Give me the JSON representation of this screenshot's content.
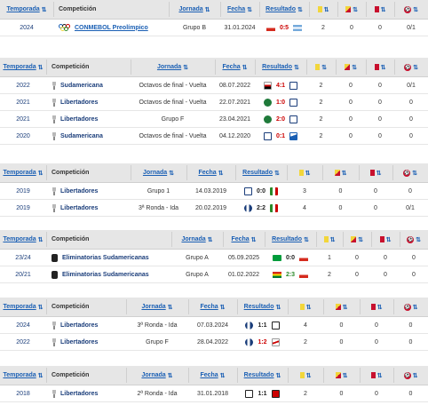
{
  "sort_icon": "⇅",
  "headers": {
    "temporada": "Temporada",
    "competicion": "Competición",
    "jornada": "Jornada",
    "fecha": "Fecha",
    "resultado": "Resultado"
  },
  "icons": {
    "yellow_card": "yellow-card-icon",
    "yellow_red_card": "yellow-red-card-icon",
    "red_card": "red-card-icon",
    "ball": "ball-icon",
    "colors": {
      "yellow": "#f2d63b",
      "red": "#c8102e",
      "link": "#1a5fb4",
      "header_bg": "#e6e6e6"
    }
  },
  "tables": [
    {
      "rows": [
        {
          "season": "2024",
          "competition": "CONMEBOL Preolímpico",
          "comp_icon": "olympic-rings",
          "comp_link": true,
          "round": "Grupo B",
          "date": "31.01.2024",
          "score": "0:5",
          "score_color": "red",
          "home": "flag-chile",
          "away": "flag-argentina",
          "yellow": "2",
          "yellow_red": "0",
          "red": "0",
          "ball": "0/1"
        }
      ]
    },
    {
      "rows": [
        {
          "season": "2022",
          "competition": "Sudamericana",
          "comp_icon": "trophy",
          "round": "Octavos de final - Vuelta",
          "date": "08.07.2022",
          "score": "4:1",
          "score_color": "red",
          "home": "sao-paulo",
          "away": "univ-catolica",
          "yellow": "2",
          "yellow_red": "0",
          "red": "0",
          "ball": "0/1"
        },
        {
          "season": "2021",
          "competition": "Libertadores",
          "comp_icon": "trophy",
          "round": "Octavos de final - Vuelta",
          "date": "22.07.2021",
          "score": "1:0",
          "score_color": "red",
          "home": "palmeiras",
          "away": "univ-catolica",
          "yellow": "2",
          "yellow_red": "0",
          "red": "0",
          "ball": "0"
        },
        {
          "season": "2021",
          "competition": "Libertadores",
          "comp_icon": "trophy",
          "round": "Grupo F",
          "date": "23.04.2021",
          "score": "2:0",
          "score_color": "red",
          "home": "palmeiras",
          "away": "univ-catolica",
          "yellow": "2",
          "yellow_red": "0",
          "red": "0",
          "ball": "0"
        },
        {
          "season": "2020",
          "competition": "Sudamericana",
          "comp_icon": "trophy",
          "round": "Octavos de final - Vuelta",
          "date": "04.12.2020",
          "score": "0:1",
          "score_color": "red",
          "home": "univ-catolica",
          "away": "velez",
          "yellow": "2",
          "yellow_red": "0",
          "red": "0",
          "ball": "0"
        }
      ]
    },
    {
      "rows": [
        {
          "season": "2019",
          "competition": "Libertadores",
          "comp_icon": "trophy",
          "round": "Grupo 1",
          "date": "14.03.2019",
          "score": "0:0",
          "score_color": "black",
          "home": "univ-catolica",
          "away": "palestino",
          "yellow": "3",
          "yellow_red": "0",
          "red": "0",
          "ball": "0"
        },
        {
          "season": "2019",
          "competition": "Libertadores",
          "comp_icon": "trophy",
          "round": "3ª Ronda - Ida",
          "date": "20.02.2019",
          "score": "2:2",
          "score_color": "black",
          "home": "talleres",
          "away": "palestino",
          "yellow": "4",
          "yellow_red": "0",
          "red": "0",
          "ball": "0/1"
        }
      ]
    },
    {
      "rows": [
        {
          "season": "23/24",
          "competition": "Eliminatorias Sudamericanas",
          "comp_icon": "elim",
          "round": "Grupo A",
          "date": "05.09.2025",
          "score": "0:0",
          "score_color": "black",
          "home": "flag-brazil",
          "away": "flag-chile",
          "yellow": "1",
          "yellow_red": "0",
          "red": "0",
          "ball": "0"
        },
        {
          "season": "20/21",
          "competition": "Eliminatorias Sudamericanas",
          "comp_icon": "elim",
          "round": "Grupo A",
          "date": "01.02.2022",
          "score": "2:3",
          "score_color": "green",
          "home": "flag-bolivia",
          "away": "flag-chile",
          "yellow": "2",
          "yellow_red": "0",
          "red": "0",
          "ball": "0"
        }
      ]
    },
    {
      "rows": [
        {
          "season": "2024",
          "competition": "Libertadores",
          "comp_icon": "trophy",
          "round": "3ª Ronda - Ida",
          "date": "07.03.2024",
          "score": "1:1",
          "score_color": "black",
          "home": "talleres",
          "away": "colo-colo",
          "yellow": "4",
          "yellow_red": "0",
          "red": "0",
          "ball": "0"
        },
        {
          "season": "2022",
          "competition": "Libertadores",
          "comp_icon": "trophy",
          "round": "Grupo F",
          "date": "28.04.2022",
          "score": "1:2",
          "score_color": "red",
          "home": "talleres",
          "away": "river-plate",
          "yellow": "2",
          "yellow_red": "0",
          "red": "0",
          "ball": "0"
        }
      ]
    },
    {
      "rows": [
        {
          "season": "2018",
          "competition": "Libertadores",
          "comp_icon": "trophy",
          "round": "2ª Ronda - Ida",
          "date": "31.01.2018",
          "score": "1:1",
          "score_color": "black",
          "home": "santos",
          "away": "real-garcilaso",
          "yellow": "2",
          "yellow_red": "0",
          "red": "0",
          "ball": "0"
        }
      ]
    }
  ]
}
